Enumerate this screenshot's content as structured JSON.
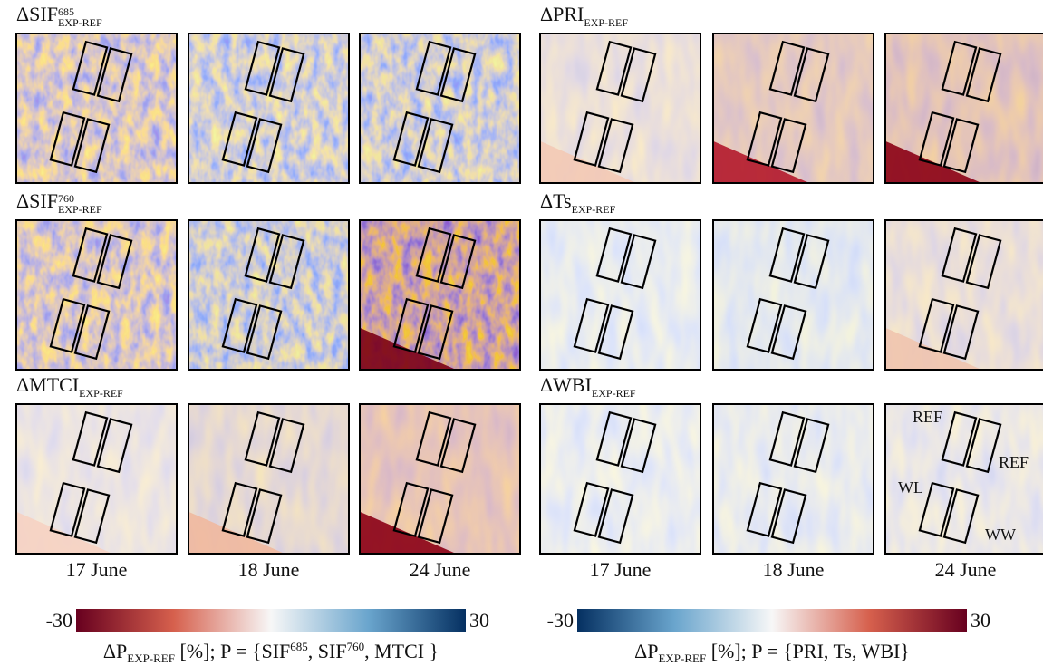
{
  "panels": [
    {
      "main": "ΔSIF",
      "sup": "685",
      "sub": "EXP-REF"
    },
    {
      "main": "ΔPRI ",
      "sub": "EXP-REF"
    },
    {
      "main": "ΔSIF",
      "sup": "760",
      "sub": "EXP-REF"
    },
    {
      "main": "ΔTs ",
      "sub": "EXP-REF"
    },
    {
      "main": "ΔMTCI",
      "sub": "EXP-REF"
    },
    {
      "main": "ΔWBI ",
      "sub": "EXP-REF"
    }
  ],
  "dates": [
    "17 June",
    "18 June",
    "24 June",
    "17 June",
    "18 June",
    "24 June"
  ],
  "plot_labels": [
    "REF",
    "REF",
    "WL",
    "WW"
  ],
  "colorbars": [
    {
      "min": "-30",
      "max": "30",
      "caption": [
        {
          "text": "ΔP"
        },
        {
          "sub": "EXP-REF"
        },
        {
          "text": " [%]; P = {SIF"
        },
        {
          "sup": "685"
        },
        {
          "text": ", SIF"
        },
        {
          "sup": "760"
        },
        {
          "text": ", MTCI }"
        }
      ]
    },
    {
      "min": "-30",
      "max": "30",
      "caption": [
        {
          "text": "ΔP"
        },
        {
          "sub": "EXP-REF"
        },
        {
          "text": " [%]; P = {PRI, Ts, WBI}"
        }
      ]
    }
  ]
}
